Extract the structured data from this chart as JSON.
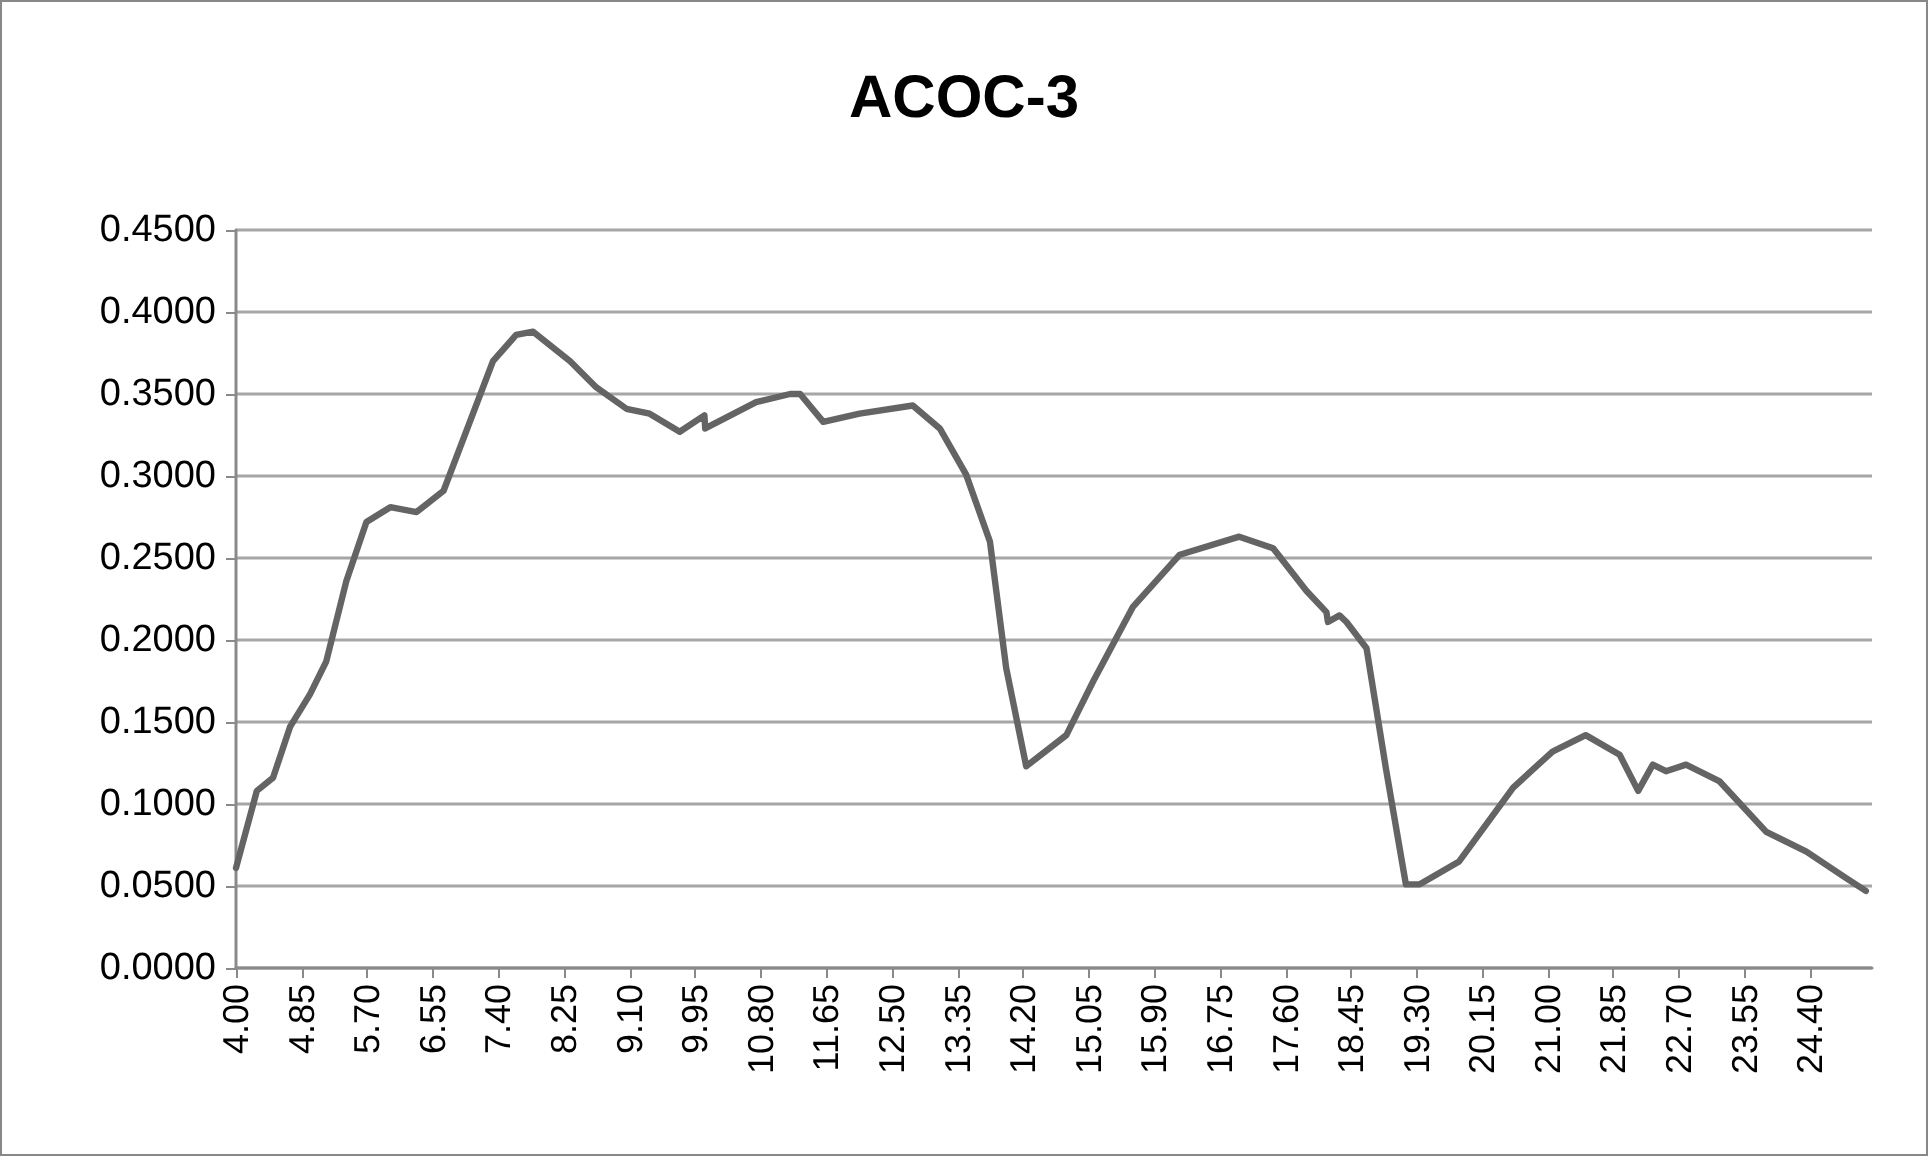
{
  "chart_data": {
    "type": "line",
    "title": "ACOC-3",
    "x": [
      4.0,
      4.27,
      4.48,
      4.7,
      4.96,
      5.17,
      5.43,
      5.69,
      6.0,
      6.34,
      6.69,
      7.03,
      7.33,
      7.63,
      7.85,
      8.33,
      8.67,
      9.06,
      9.36,
      9.75,
      10.07,
      10.08,
      10.74,
      11.18,
      11.31,
      11.61,
      12.08,
      12.77,
      13.12,
      13.46,
      13.77,
      13.98,
      14.24,
      14.76,
      15.11,
      15.62,
      16.23,
      17.0,
      17.44,
      17.87,
      18.13,
      18.15,
      18.3,
      18.39,
      18.65,
      18.9,
      19.16,
      19.34,
      19.85,
      20.55,
      21.06,
      21.49,
      21.93,
      22.17,
      22.36,
      22.53,
      22.79,
      23.22,
      23.83,
      24.35,
      24.86,
      25.12
    ],
    "series": [
      {
        "color": "#646464",
        "values": [
          0.061,
          0.108,
          0.116,
          0.147,
          0.167,
          0.187,
          0.236,
          0.272,
          0.281,
          0.278,
          0.291,
          0.333,
          0.37,
          0.386,
          0.388,
          0.37,
          0.354,
          0.341,
          0.338,
          0.327,
          0.337,
          0.329,
          0.345,
          0.35,
          0.35,
          0.333,
          0.338,
          0.343,
          0.329,
          0.301,
          0.26,
          0.183,
          0.123,
          0.142,
          0.175,
          0.22,
          0.252,
          0.263,
          0.256,
          0.23,
          0.217,
          0.211,
          0.215,
          0.211,
          0.195,
          0.122,
          0.051,
          0.051,
          0.065,
          0.11,
          0.132,
          0.142,
          0.13,
          0.108,
          0.124,
          0.12,
          0.124,
          0.114,
          0.083,
          0.071,
          0.055,
          0.047
        ]
      }
    ],
    "xlim": [
      4,
      25.2
    ],
    "xticks": [
      {
        "value": 4,
        "label": "4.00"
      },
      {
        "value": 4.85,
        "label": "4.85"
      },
      {
        "value": 5.7,
        "label": "5.70"
      },
      {
        "value": 6.55,
        "label": "6.55"
      },
      {
        "value": 7.4,
        "label": "7.40"
      },
      {
        "value": 8.25,
        "label": "8.25"
      },
      {
        "value": 9.1,
        "label": "9.10"
      },
      {
        "value": 9.95,
        "label": "9.95"
      },
      {
        "value": 10.8,
        "label": "10.80"
      },
      {
        "value": 11.65,
        "label": "11.65"
      },
      {
        "value": 12.5,
        "label": "12.50"
      },
      {
        "value": 13.35,
        "label": "13.35"
      },
      {
        "value": 14.2,
        "label": "14.20"
      },
      {
        "value": 15.05,
        "label": "15.05"
      },
      {
        "value": 15.9,
        "label": "15.90"
      },
      {
        "value": 16.75,
        "label": "16.75"
      },
      {
        "value": 17.6,
        "label": "17.60"
      },
      {
        "value": 18.45,
        "label": "18.45"
      },
      {
        "value": 19.3,
        "label": "19.30"
      },
      {
        "value": 20.15,
        "label": "20.15"
      },
      {
        "value": 21,
        "label": "21.00"
      },
      {
        "value": 21.85,
        "label": "21.85"
      },
      {
        "value": 22.7,
        "label": "22.70"
      },
      {
        "value": 23.55,
        "label": "23.55"
      },
      {
        "value": 24.4,
        "label": "24.40"
      }
    ],
    "ylim": [
      0,
      0.45
    ],
    "yticks": [
      {
        "value": 0,
        "label": "0.0000"
      },
      {
        "value": 0.05,
        "label": "0.0500"
      },
      {
        "value": 0.1,
        "label": "0.1000"
      },
      {
        "value": 0.15,
        "label": "0.1500"
      },
      {
        "value": 0.2,
        "label": "0.2000"
      },
      {
        "value": 0.25,
        "label": "0.2500"
      },
      {
        "value": 0.3,
        "label": "0.3000"
      },
      {
        "value": 0.35,
        "label": "0.3500"
      },
      {
        "value": 0.4,
        "label": "0.4000"
      },
      {
        "value": 0.45,
        "label": "0.4500"
      }
    ],
    "grid": "y",
    "marker": "none",
    "line_style": "solid"
  }
}
